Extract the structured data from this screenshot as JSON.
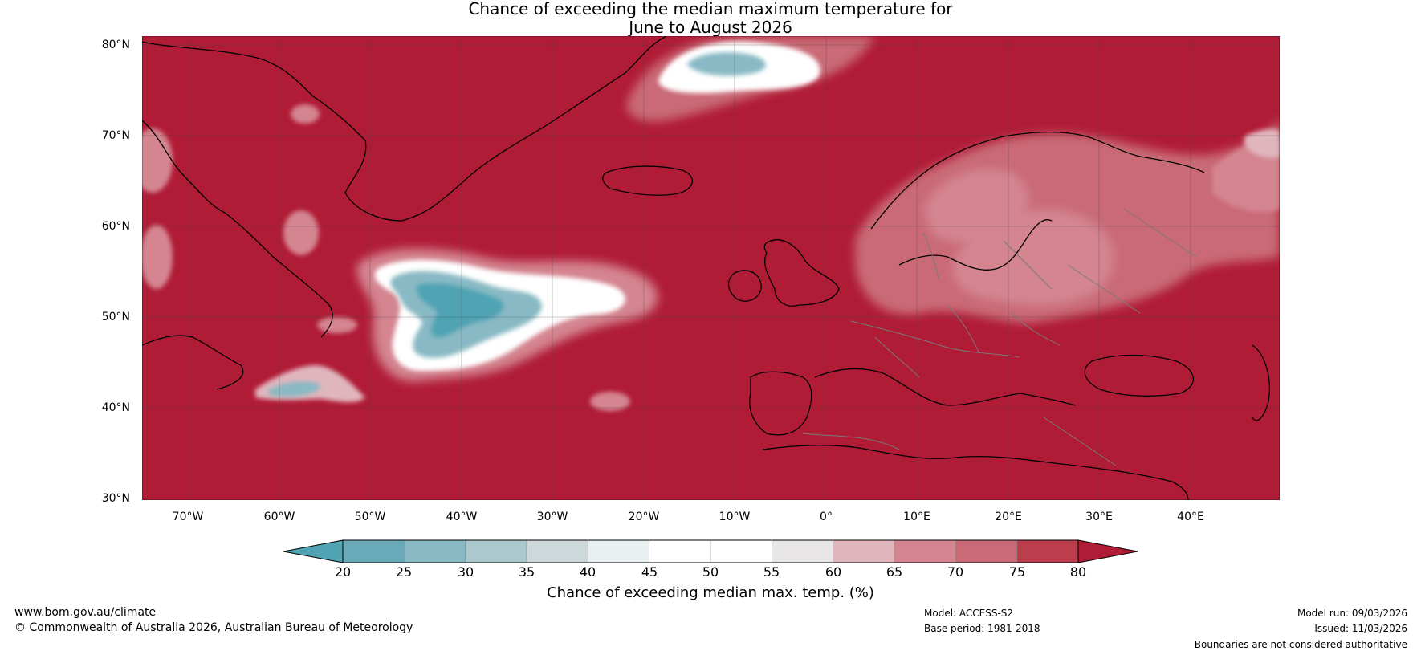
{
  "title": {
    "line1": "Chance of exceeding the median maximum temperature for",
    "line2": "June to August 2026"
  },
  "map": {
    "lat_labels": [
      "80°N",
      "70°N",
      "60°N",
      "50°N",
      "40°N",
      "30°N"
    ],
    "lon_labels": [
      "70°W",
      "60°W",
      "50°W",
      "40°W",
      "30°W",
      "20°W",
      "10°W",
      "0°",
      "10°E",
      "20°E",
      "30°E",
      "40°E"
    ],
    "extent": {
      "lon_min": -75,
      "lon_max": 50,
      "lat_min": 30,
      "lat_max": 81
    },
    "background_color": "#b01b36"
  },
  "colorbar": {
    "ticks": [
      "20",
      "25",
      "30",
      "35",
      "40",
      "45",
      "50",
      "55",
      "60",
      "65",
      "70",
      "75",
      "80"
    ],
    "colors": [
      "#4fa3b3",
      "#6aaab8",
      "#89b9c4",
      "#aac8cd",
      "#cdd8db",
      "#e9f0f1",
      "#ffffff",
      "#ffffff",
      "#e8e6e7",
      "#e0b6bd",
      "#d48590",
      "#c96a76",
      "#bc3e4c"
    ],
    "under_color": "#4fa3b3",
    "over_color": "#b01b36",
    "label": "Chance of exceeding median max. temp. (%)"
  },
  "footer": {
    "website": "www.bom.gov.au/climate",
    "copyright": "© Commonwealth of Australia 2026, Australian Bureau of Meteorology",
    "model": "Model: ACCESS-S2",
    "base_period": "Base period: 1981-2018",
    "model_run": "Model run: 09/03/2026",
    "issued": "Issued: 11/03/2026",
    "disclaimer": "Boundaries are not considered authoritative"
  }
}
